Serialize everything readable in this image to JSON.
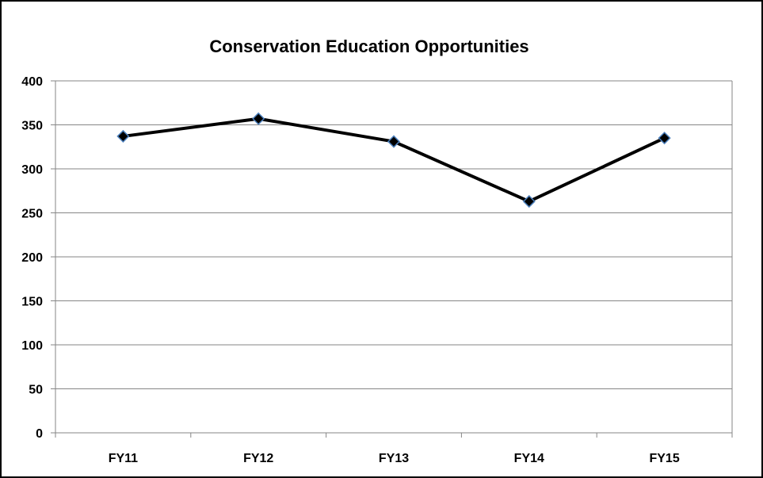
{
  "chart_data": {
    "type": "line",
    "title": "Conservation Education Opportunities",
    "xlabel": "",
    "ylabel": "",
    "categories": [
      "FY11",
      "FY12",
      "FY13",
      "FY14",
      "FY15"
    ],
    "series": [
      {
        "values": [
          337,
          357,
          331,
          263,
          335
        ]
      }
    ],
    "ylim": [
      0,
      400
    ],
    "yticks": [
      "0",
      "50",
      "100",
      "150",
      "200",
      "250",
      "300",
      "350",
      "400"
    ],
    "grid": true,
    "legend": "none",
    "line_color": "#000000",
    "marker_fill": "#000000",
    "marker_stroke": "#4a7ebb",
    "grid_color": "#868686"
  }
}
